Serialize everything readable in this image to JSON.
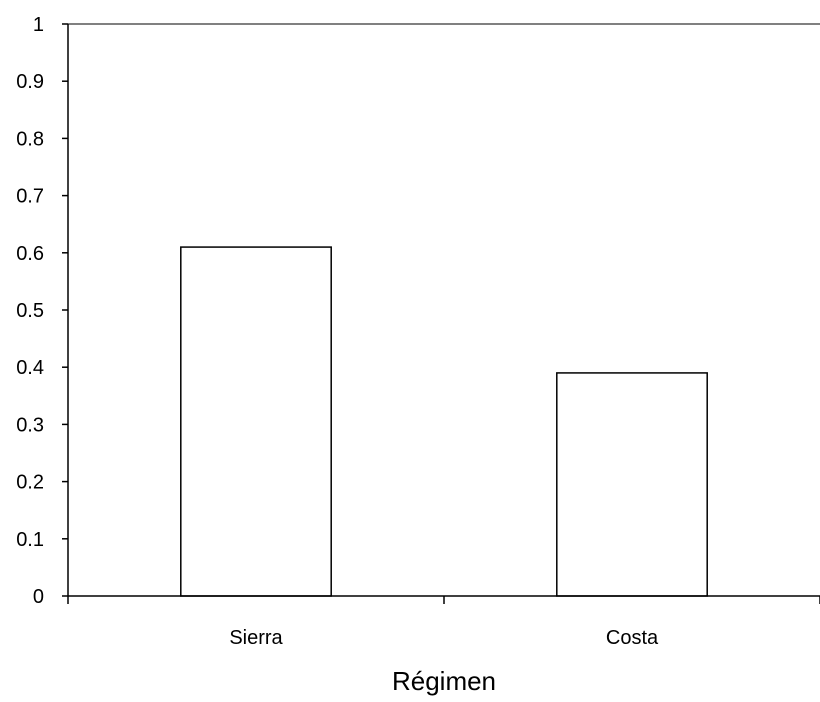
{
  "chart_data": {
    "type": "bar",
    "categories": [
      "Sierra",
      "Costa"
    ],
    "values": [
      0.61,
      0.39
    ],
    "xlabel": "Régimen",
    "ylabel": "",
    "ylim": [
      0,
      1
    ],
    "yticks": [
      "0",
      "0.1",
      "0.2",
      "0.3",
      "0.4",
      "0.5",
      "0.6",
      "0.7",
      "0.8",
      "0.9",
      "1"
    ],
    "grid": false,
    "legend": "none",
    "colors": {
      "bar_fill": "#ffffff",
      "bar_stroke": "#000000",
      "axis": "#000000",
      "top_border": "#808080"
    }
  }
}
